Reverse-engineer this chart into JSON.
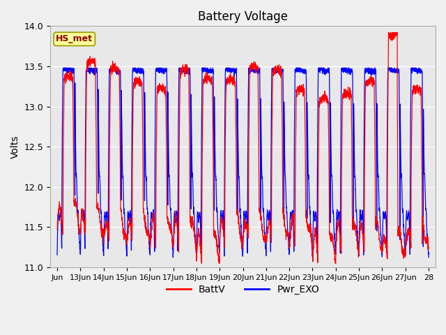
{
  "title": "Battery Voltage",
  "ylabel": "Volts",
  "ylim": [
    11.0,
    14.0
  ],
  "yticks": [
    11.0,
    11.5,
    12.0,
    12.5,
    13.0,
    13.5,
    14.0
  ],
  "xtick_labels": [
    "Jun",
    "13Jun",
    "14Jun",
    "15Jun",
    "16Jun",
    "17Jun",
    "18Jun",
    "19Jun",
    "20Jun",
    "21Jun",
    "22Jun",
    "23Jun",
    "24Jun",
    "25Jun",
    "26Jun",
    "27Jun",
    "28"
  ],
  "xtick_positions": [
    0,
    1,
    2,
    3,
    4,
    5,
    6,
    7,
    8,
    9,
    10,
    11,
    12,
    13,
    14,
    15,
    16
  ],
  "legend_lines": [
    "BattV",
    "Pwr_EXO"
  ],
  "line_colors_hex": [
    "red",
    "blue"
  ],
  "station_label": "HS_met",
  "bg_color": "#e8e8e8",
  "grid_color": "#ffffff",
  "fig_bg": "#f0f0f0",
  "xlim": [
    -0.3,
    16.3
  ]
}
